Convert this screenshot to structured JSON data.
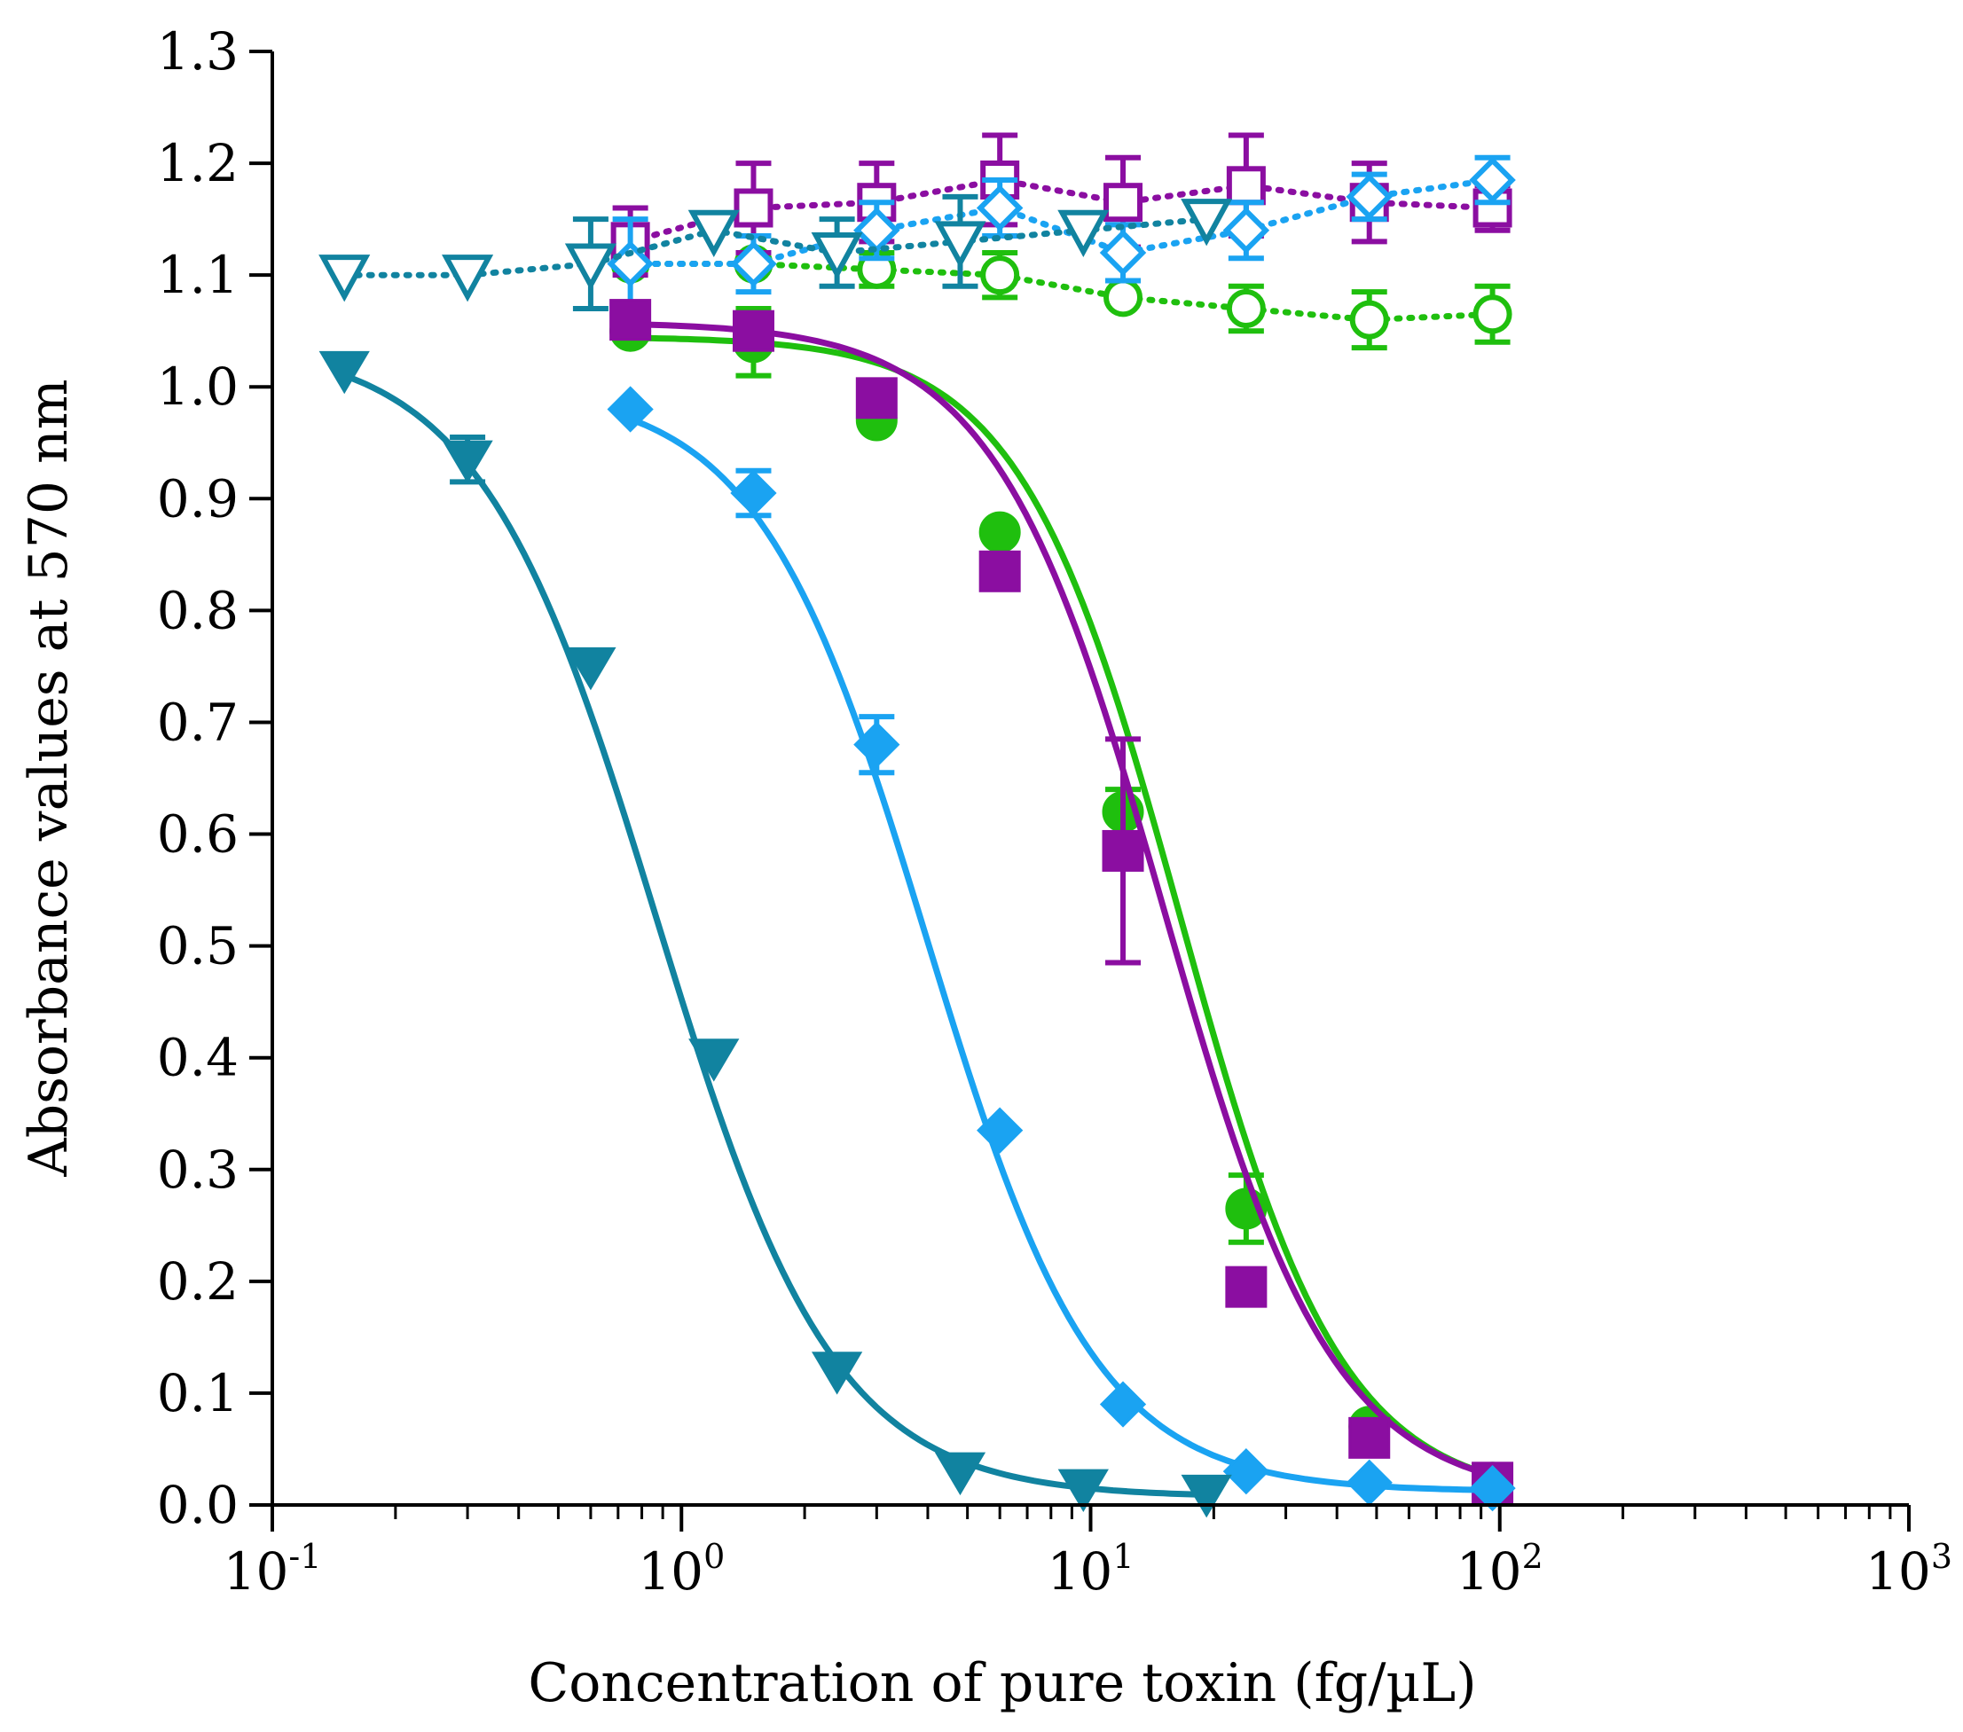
{
  "chart_data": {
    "type": "scatter",
    "title": "",
    "xlabel": "Concentration of pure toxin (fg/µL)",
    "ylabel": "Absorbance values at 570 nm",
    "xscale": "log",
    "xlim_log10": [
      -1,
      3
    ],
    "ylim": [
      0.0,
      1.3
    ],
    "x_ticks": [
      {
        "base": "10",
        "exp": "-1",
        "log10": -1
      },
      {
        "base": "10",
        "exp": "0",
        "log10": 0
      },
      {
        "base": "10",
        "exp": "1",
        "log10": 1
      },
      {
        "base": "10",
        "exp": "2",
        "log10": 2
      },
      {
        "base": "10",
        "exp": "3",
        "log10": 3
      }
    ],
    "y_ticks": [
      {
        "label": "0.0",
        "value": 0.0
      },
      {
        "label": "0.1",
        "value": 0.1
      },
      {
        "label": "0.2",
        "value": 0.2
      },
      {
        "label": "0.3",
        "value": 0.3
      },
      {
        "label": "0.4",
        "value": 0.4
      },
      {
        "label": "0.5",
        "value": 0.5
      },
      {
        "label": "0.6",
        "value": 0.6
      },
      {
        "label": "0.7",
        "value": 0.7
      },
      {
        "label": "0.8",
        "value": 0.8
      },
      {
        "label": "0.9",
        "value": 0.9
      },
      {
        "label": "1.0",
        "value": 1.0
      },
      {
        "label": "1.1",
        "value": 1.1
      },
      {
        "label": "1.2",
        "value": 1.2
      },
      {
        "label": "1.3",
        "value": 1.3
      }
    ],
    "grid": false,
    "series": [
      {
        "name": "green-filled-circles",
        "color": "#1fbf0e",
        "marker": "circle",
        "filled": true,
        "line": "solid",
        "x": [
          0.75,
          1.5,
          3.0,
          6.0,
          12.0,
          24.0,
          48.0,
          96.0
        ],
        "y": [
          1.05,
          1.04,
          0.97,
          0.87,
          0.62,
          0.265,
          0.07,
          0.02
        ],
        "err": [
          0,
          0.03,
          0,
          0,
          0.02,
          0.03,
          0,
          0
        ],
        "fit": {
          "top": 1.045,
          "bottom": 0.005,
          "logEC50": 1.22,
          "hill": 2.2
        }
      },
      {
        "name": "purple-filled-squares",
        "color": "#8b0ea1",
        "marker": "square",
        "filled": true,
        "line": "solid",
        "x": [
          0.75,
          1.5,
          3.0,
          6.0,
          12.0,
          24.0,
          48.0,
          96.0
        ],
        "y": [
          1.06,
          1.05,
          0.99,
          0.835,
          0.585,
          0.195,
          0.06,
          0.02
        ],
        "err": [
          0,
          0,
          0,
          0,
          0.1,
          0,
          0,
          0
        ],
        "fit": {
          "top": 1.058,
          "bottom": 0.005,
          "logEC50": 1.18,
          "hill": 2.1
        }
      },
      {
        "name": "lightblue-filled-diamonds",
        "color": "#1aa3f2",
        "marker": "diamond",
        "filled": true,
        "line": "solid",
        "x": [
          0.75,
          1.5,
          3.0,
          6.0,
          12.0,
          24.0,
          48.0,
          96.0
        ],
        "y": [
          0.98,
          0.905,
          0.68,
          0.335,
          0.09,
          0.03,
          0.02,
          0.015
        ],
        "err": [
          0,
          0.02,
          0.025,
          0,
          0,
          0,
          0,
          0
        ],
        "fit": {
          "top": 1.0,
          "bottom": 0.012,
          "logEC50": 0.6,
          "hill": 2.1
        }
      },
      {
        "name": "teal-filled-triangles",
        "color": "#1183a0",
        "marker": "triangle-down",
        "filled": true,
        "line": "solid",
        "x": [
          0.15,
          0.3,
          0.6,
          1.2,
          2.4,
          4.8,
          9.6,
          19.2
        ],
        "y": [
          1.015,
          0.935,
          0.75,
          0.4,
          0.12,
          0.03,
          0.015,
          0.01
        ],
        "err": [
          0,
          0.02,
          0,
          0,
          0,
          0,
          0,
          0
        ],
        "fit": {
          "top": 1.04,
          "bottom": 0.007,
          "logEC50": -0.06,
          "hill": 2.0
        }
      },
      {
        "name": "green-open-circles",
        "color": "#1fbf0e",
        "marker": "circle",
        "filled": false,
        "line": "dotted",
        "x": [
          0.75,
          1.5,
          3.0,
          6.0,
          12.0,
          24.0,
          48.0,
          96.0
        ],
        "y": [
          1.11,
          1.11,
          1.105,
          1.1,
          1.08,
          1.07,
          1.06,
          1.065
        ],
        "err": [
          0,
          0,
          0.015,
          0.02,
          0,
          0.02,
          0.025,
          0.025
        ]
      },
      {
        "name": "purple-open-squares",
        "color": "#8b0ea1",
        "marker": "square",
        "filled": false,
        "line": "dotted",
        "x": [
          0.75,
          1.5,
          3.0,
          6.0,
          12.0,
          24.0,
          48.0,
          96.0
        ],
        "y": [
          1.13,
          1.16,
          1.165,
          1.185,
          1.165,
          1.18,
          1.165,
          1.16
        ],
        "err": [
          0.03,
          0.04,
          0.035,
          0.04,
          0.04,
          0.045,
          0.035,
          0.02
        ]
      },
      {
        "name": "lightblue-open-diamonds",
        "color": "#1aa3f2",
        "marker": "diamond",
        "filled": false,
        "line": "dotted",
        "x": [
          0.75,
          1.5,
          3.0,
          6.0,
          12.0,
          24.0,
          48.0,
          96.0
        ],
        "y": [
          1.11,
          1.11,
          1.14,
          1.16,
          1.12,
          1.14,
          1.17,
          1.185
        ],
        "err": [
          0.04,
          0.025,
          0.025,
          0.025,
          0.025,
          0.025,
          0.02,
          0.02
        ]
      },
      {
        "name": "teal-open-triangles",
        "color": "#1183a0",
        "marker": "triangle-down",
        "filled": false,
        "line": "dotted",
        "x": [
          0.15,
          0.3,
          0.6,
          1.2,
          2.4,
          4.8,
          9.6,
          19.2
        ],
        "y": [
          1.1,
          1.1,
          1.11,
          1.14,
          1.12,
          1.13,
          1.14,
          1.15
        ],
        "err": [
          0,
          0,
          0.04,
          0,
          0.03,
          0.04,
          0,
          0
        ]
      }
    ]
  }
}
